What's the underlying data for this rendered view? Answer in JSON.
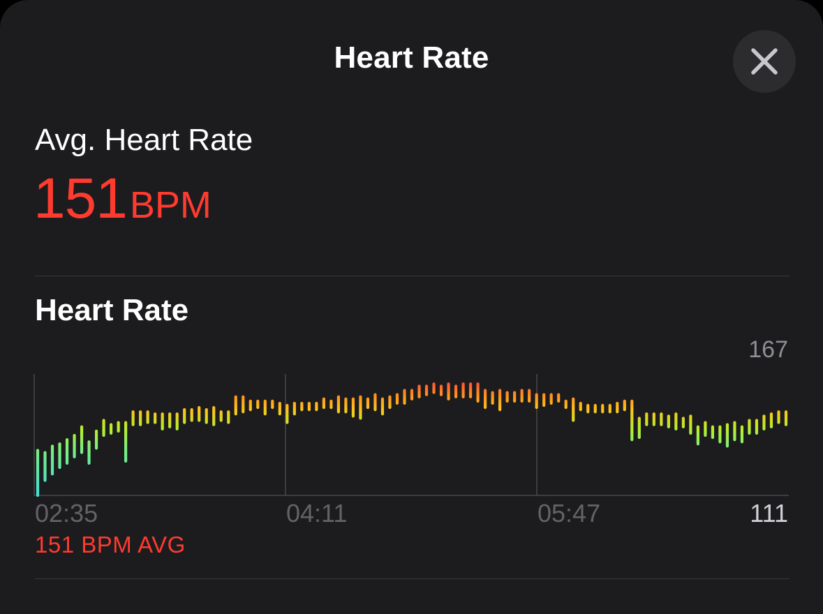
{
  "header": {
    "title": "Heart Rate",
    "close_icon": "close-icon"
  },
  "summary": {
    "label": "Avg. Heart Rate",
    "value": "151",
    "unit": "BPM"
  },
  "section": {
    "title": "Heart Rate",
    "avg_footer": "151 BPM AVG"
  },
  "colors": {
    "accent": "#ff3b30",
    "low": "#40e0d8",
    "mid": "#b5f02e",
    "high": "#ff2d4a"
  },
  "chart_data": {
    "type": "bar",
    "chart_style": "vertical range bars (min–max heart rate per sample), gradient colored from teal (low) through green/yellow/orange to red (high)",
    "y_max_label": "167",
    "y_min_label": "111",
    "ylim": [
      111,
      167
    ],
    "x_tick_labels": [
      "02:35",
      "04:11",
      "05:47"
    ],
    "grid": "vertical lines at each time tick",
    "series": [
      {
        "ranges": [
          [
            111,
            132
          ],
          [
            118,
            131
          ],
          [
            121,
            134
          ],
          [
            124,
            135
          ],
          [
            126,
            137
          ],
          [
            129,
            139
          ],
          [
            131,
            143
          ],
          [
            126,
            136
          ],
          [
            133,
            141
          ],
          [
            139,
            146
          ],
          [
            140,
            144
          ],
          [
            141,
            145
          ],
          [
            127,
            145
          ],
          [
            144,
            150
          ],
          [
            144,
            150
          ],
          [
            145,
            150
          ],
          [
            145,
            149
          ],
          [
            142,
            149
          ],
          [
            143,
            149
          ],
          [
            142,
            149
          ],
          [
            145,
            151
          ],
          [
            146,
            151
          ],
          [
            146,
            152
          ],
          [
            145,
            151
          ],
          [
            144,
            152
          ],
          [
            146,
            150
          ],
          [
            145,
            150
          ],
          [
            149,
            157
          ],
          [
            150,
            157
          ],
          [
            151,
            155
          ],
          [
            152,
            155
          ],
          [
            149,
            155
          ],
          [
            152,
            155
          ],
          [
            149,
            154
          ],
          [
            145,
            153
          ],
          [
            149,
            154
          ],
          [
            151,
            154
          ],
          [
            151,
            154
          ],
          [
            151,
            154
          ],
          [
            152,
            156
          ],
          [
            152,
            155
          ],
          [
            150,
            157
          ],
          [
            150,
            156
          ],
          [
            148,
            156
          ],
          [
            147,
            157
          ],
          [
            152,
            156
          ],
          [
            151,
            158
          ],
          [
            149,
            156
          ],
          [
            152,
            157
          ],
          [
            154,
            158
          ],
          [
            154,
            160
          ],
          [
            156,
            160
          ],
          [
            157,
            162
          ],
          [
            158,
            162
          ],
          [
            159,
            163
          ],
          [
            158,
            162
          ],
          [
            156,
            163
          ],
          [
            157,
            162
          ],
          [
            157,
            163
          ],
          [
            157,
            163
          ],
          [
            155,
            163
          ],
          [
            152,
            160
          ],
          [
            154,
            159
          ],
          [
            151,
            160
          ],
          [
            155,
            159
          ],
          [
            155,
            159
          ],
          [
            155,
            160
          ],
          [
            155,
            160
          ],
          [
            152,
            158
          ],
          [
            153,
            158
          ],
          [
            154,
            158
          ],
          [
            155,
            158
          ],
          [
            152,
            155
          ],
          [
            146,
            156
          ],
          [
            151,
            154
          ],
          [
            150,
            153
          ],
          [
            150,
            153
          ],
          [
            150,
            153
          ],
          [
            150,
            153
          ],
          [
            150,
            154
          ],
          [
            151,
            155
          ],
          [
            137,
            155
          ],
          [
            138,
            147
          ],
          [
            144,
            149
          ],
          [
            144,
            149
          ],
          [
            144,
            149
          ],
          [
            143,
            148
          ],
          [
            142,
            149
          ],
          [
            143,
            147
          ],
          [
            140,
            148
          ],
          [
            135,
            143
          ],
          [
            139,
            145
          ],
          [
            138,
            143
          ],
          [
            136,
            143
          ],
          [
            134,
            144
          ],
          [
            137,
            145
          ],
          [
            136,
            143
          ],
          [
            140,
            146
          ],
          [
            140,
            146
          ],
          [
            142,
            148
          ],
          [
            143,
            149
          ],
          [
            145,
            150
          ],
          [
            144,
            150
          ]
        ]
      }
    ]
  }
}
